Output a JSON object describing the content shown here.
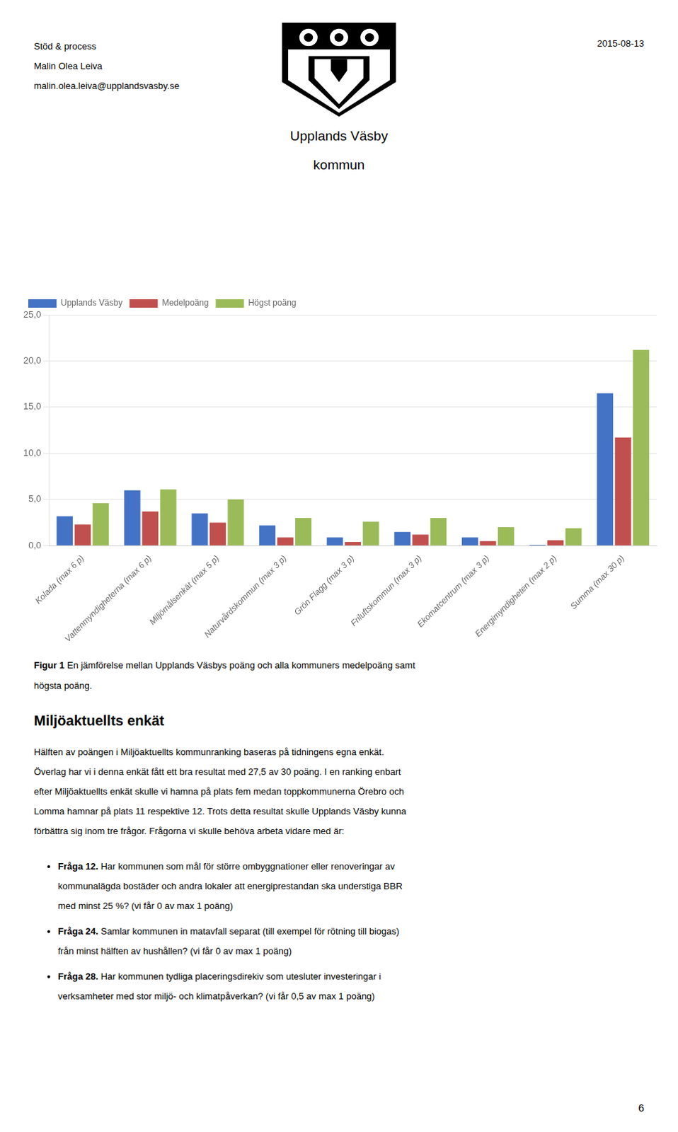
{
  "chart_data": {
    "type": "bar",
    "categories": [
      "Kolada (max 6 p)",
      "Vattenmyndigheterna (max 6 p)",
      "Miljömålsenkät (max 5 p)",
      "Naturvårdskommun (max 3 p)",
      "Grön Flagg (max 3 p)",
      "Friluftskommun (max 3 p)",
      "Ekomatcentrum (max 3 p)",
      "Energimyndigheten (max 2 p)",
      "Summa (max 30 p)"
    ],
    "series": [
      {
        "name": "Upplands Väsby",
        "color": "#4472C4",
        "values": [
          3.2,
          6.0,
          3.5,
          2.2,
          0.9,
          1.5,
          0.9,
          0.1,
          16.5
        ]
      },
      {
        "name": "Medelpoäng",
        "color": "#C0504D",
        "values": [
          2.3,
          3.7,
          2.5,
          0.9,
          0.4,
          1.2,
          0.5,
          0.6,
          11.7
        ]
      },
      {
        "name": "Högst poäng",
        "color": "#9BBB59",
        "values": [
          4.6,
          6.1,
          5.0,
          3.0,
          2.6,
          3.0,
          2.0,
          1.9,
          21.2
        ]
      }
    ],
    "ylim": [
      0,
      25
    ],
    "yticks": [
      {
        "value": 0,
        "label": "0,0"
      },
      {
        "value": 5,
        "label": "5,0"
      },
      {
        "value": 10,
        "label": "10,0"
      },
      {
        "value": 15,
        "label": "15,0"
      },
      {
        "value": 20,
        "label": "20,0"
      },
      {
        "value": 25,
        "label": "25,0"
      }
    ],
    "grid": true,
    "legend": "upper left"
  },
  "header": {
    "lines": [
      "Stöd & process",
      "Malin Olea Leiva",
      "malin.olea.leiva@upplandsvasby.se"
    ],
    "date": "2015-08-13"
  },
  "logo": [
    "Upplands Väsby",
    "kommun"
  ],
  "caption": {
    "bold": "Figur 1",
    "rest": " En jämförelse mellan Upplands Väsbys poäng och alla kommuners medelpoäng samt",
    "line2": "högsta poäng."
  },
  "section_title": "Miljöaktuellts enkät",
  "paragraph": [
    "Hälften av poängen i Miljöaktuellts kommunranking baseras på tidningens egna enkät.",
    "Överlag har vi i denna enkät fått ett bra resultat med 27,5 av 30 poäng. I en ranking enbart",
    "efter Miljöaktuellts enkät skulle vi hamna på plats fem medan toppkommunerna Örebro och",
    "Lomma hamnar på plats 11 respektive 12. Trots detta resultat skulle Upplands Väsby kunna",
    "förbättra sig inom tre frågor. Frågorna vi skulle behöva arbeta vidare med är:"
  ],
  "bullets": [
    {
      "bold": "Fråga 12.",
      "lines": [
        " Har kommunen som mål för större ombyggnationer eller renoveringar av",
        "kommunalägda bostäder och andra lokaler att energiprestandan ska understiga BBR",
        "med minst 25 %? (vi får 0 av max 1 poäng)"
      ]
    },
    {
      "bold": "Fråga 24.",
      "lines": [
        " Samlar kommunen in matavfall separat (till exempel för rötning till biogas)",
        "från minst hälften av hushållen? (vi får 0 av max 1 poäng)"
      ]
    },
    {
      "bold": "Fråga 28.",
      "lines": [
        " Har kommunen tydliga placeringsdirekiv som utesluter investeringar i",
        "verksamheter med stor miljö- och klimatpåverkan? (vi får 0,5 av max 1 poäng)"
      ]
    }
  ],
  "page_number": "6"
}
